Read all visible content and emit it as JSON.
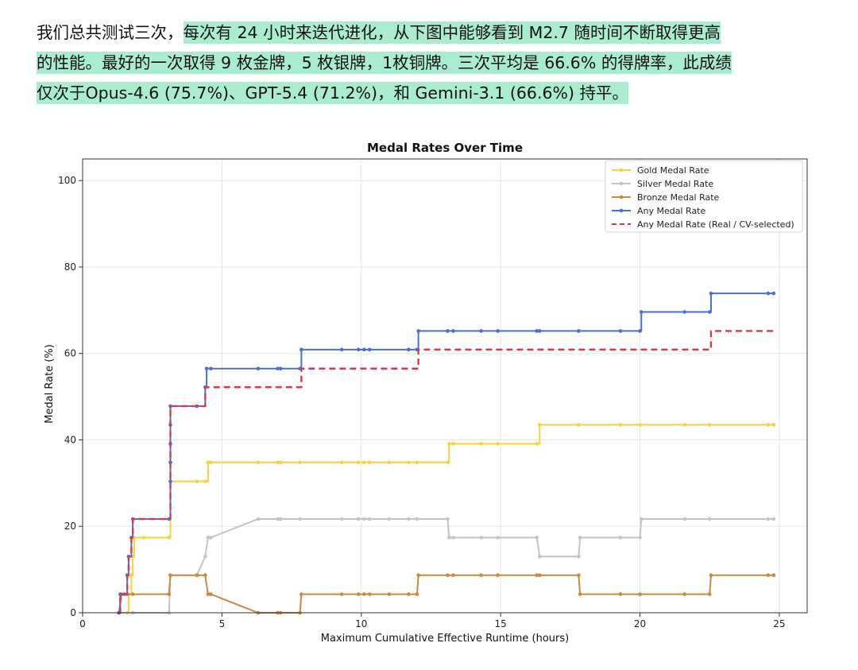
{
  "text": {
    "line1_plain": "我们总共测试三次，",
    "line1_hl": "每次有 24 小时来迭代进化，从下图中能够看到 M2.7 随时间不断取得更高",
    "line2_hl": "的性能。最好的一次取得 9 枚金牌，5 枚银牌，1枚铜牌。三次平均是 66.6% 的得牌率，此成绩",
    "line3_hl": "仅次于Opus-4.6 (75.7%)、GPT-5.4 (71.2%)，和 Gemini-3.1 (66.6%) 持平。"
  },
  "colors": {
    "highlight": "#a9ecd0",
    "gold": "#f5d33a",
    "silver": "#c4c4c4",
    "bronze": "#c98a3e",
    "any": "#4a6fd8",
    "real": "#d9394f"
  },
  "chart_data": {
    "type": "line",
    "title": "Medal Rates Over Time",
    "xlabel": "Maximum Cumulative Effective Runtime (hours)",
    "ylabel": "Medal Rate (%)",
    "xlim": [
      0,
      26
    ],
    "ylim": [
      0,
      105
    ],
    "xticks": [
      0,
      5,
      10,
      15,
      20,
      25
    ],
    "yticks": [
      0,
      20,
      40,
      60,
      80,
      100
    ],
    "grid": true,
    "legend_position": "top-right",
    "series": [
      {
        "name": "Gold Medal Rate",
        "color": "#f5d33a",
        "style": "solid",
        "step": true,
        "points": [
          [
            1.3,
            0
          ],
          [
            1.6,
            0
          ],
          [
            1.65,
            4.3
          ],
          [
            1.75,
            8.7
          ],
          [
            1.8,
            13
          ],
          [
            1.85,
            17.4
          ],
          [
            2.2,
            17.4
          ],
          [
            3.1,
            17.4
          ],
          [
            3.15,
            30.4
          ],
          [
            4.1,
            30.4
          ],
          [
            4.4,
            30.4
          ],
          [
            4.5,
            34.8
          ],
          [
            4.6,
            34.8
          ],
          [
            6.3,
            34.8
          ],
          [
            7.0,
            34.8
          ],
          [
            7.1,
            34.8
          ],
          [
            7.8,
            34.8
          ],
          [
            9.3,
            34.8
          ],
          [
            9.9,
            34.8
          ],
          [
            10.1,
            34.8
          ],
          [
            10.3,
            34.8
          ],
          [
            11.0,
            34.8
          ],
          [
            11.7,
            34.8
          ],
          [
            12.0,
            34.8
          ],
          [
            13.1,
            34.8
          ],
          [
            13.15,
            39.1
          ],
          [
            13.3,
            39.1
          ],
          [
            14.3,
            39.1
          ],
          [
            14.9,
            39.1
          ],
          [
            16.3,
            39.1
          ],
          [
            16.4,
            43.5
          ],
          [
            17.8,
            43.5
          ],
          [
            19.3,
            43.5
          ],
          [
            20.0,
            43.5
          ],
          [
            21.6,
            43.5
          ],
          [
            22.5,
            43.5
          ],
          [
            24.6,
            43.5
          ],
          [
            24.8,
            43.5
          ]
        ]
      },
      {
        "name": "Silver Medal Rate",
        "color": "#c4c4c4",
        "style": "solid",
        "step": false,
        "points": [
          [
            1.3,
            0
          ],
          [
            1.8,
            0
          ],
          [
            3.1,
            0
          ],
          [
            3.15,
            8.7
          ],
          [
            4.1,
            8.7
          ],
          [
            4.4,
            13
          ],
          [
            4.5,
            17.4
          ],
          [
            4.6,
            17.4
          ],
          [
            6.3,
            21.7
          ],
          [
            7.0,
            21.7
          ],
          [
            7.1,
            21.7
          ],
          [
            7.8,
            21.7
          ],
          [
            9.3,
            21.7
          ],
          [
            9.9,
            21.7
          ],
          [
            10.1,
            21.7
          ],
          [
            10.3,
            21.7
          ],
          [
            11.0,
            21.7
          ],
          [
            11.7,
            21.7
          ],
          [
            12.0,
            21.7
          ],
          [
            13.1,
            21.7
          ],
          [
            13.15,
            17.4
          ],
          [
            13.3,
            17.4
          ],
          [
            14.3,
            17.4
          ],
          [
            14.9,
            17.4
          ],
          [
            16.3,
            17.4
          ],
          [
            16.4,
            13
          ],
          [
            17.8,
            13
          ],
          [
            17.85,
            17.4
          ],
          [
            19.3,
            17.4
          ],
          [
            20.0,
            17.4
          ],
          [
            20.05,
            21.7
          ],
          [
            21.6,
            21.7
          ],
          [
            22.5,
            21.7
          ],
          [
            24.6,
            21.7
          ],
          [
            24.8,
            21.7
          ]
        ]
      },
      {
        "name": "Bronze Medal Rate",
        "color": "#c98a3e",
        "style": "solid",
        "step": false,
        "points": [
          [
            1.3,
            0
          ],
          [
            1.4,
            4.3
          ],
          [
            1.6,
            4.3
          ],
          [
            1.8,
            4.3
          ],
          [
            3.1,
            4.3
          ],
          [
            3.15,
            8.7
          ],
          [
            4.1,
            8.7
          ],
          [
            4.4,
            8.7
          ],
          [
            4.5,
            4.3
          ],
          [
            4.6,
            4.3
          ],
          [
            6.3,
            0
          ],
          [
            7.0,
            0
          ],
          [
            7.1,
            0
          ],
          [
            7.8,
            0
          ],
          [
            7.85,
            4.3
          ],
          [
            9.3,
            4.3
          ],
          [
            9.9,
            4.3
          ],
          [
            10.1,
            4.3
          ],
          [
            10.3,
            4.3
          ],
          [
            11.0,
            4.3
          ],
          [
            11.7,
            4.3
          ],
          [
            12.0,
            4.3
          ],
          [
            12.05,
            8.7
          ],
          [
            13.1,
            8.7
          ],
          [
            13.3,
            8.7
          ],
          [
            14.3,
            8.7
          ],
          [
            14.9,
            8.7
          ],
          [
            16.3,
            8.7
          ],
          [
            16.4,
            8.7
          ],
          [
            17.8,
            8.7
          ],
          [
            17.85,
            4.3
          ],
          [
            19.3,
            4.3
          ],
          [
            20.0,
            4.3
          ],
          [
            21.6,
            4.3
          ],
          [
            22.5,
            4.3
          ],
          [
            22.55,
            8.7
          ],
          [
            24.6,
            8.7
          ],
          [
            24.8,
            8.7
          ]
        ]
      },
      {
        "name": "Any Medal Rate",
        "color": "#4a6fd8",
        "style": "solid",
        "step": true,
        "points": [
          [
            1.3,
            0
          ],
          [
            1.35,
            4.3
          ],
          [
            1.5,
            4.3
          ],
          [
            1.6,
            8.7
          ],
          [
            1.65,
            13
          ],
          [
            1.75,
            17.4
          ],
          [
            1.8,
            21.7
          ],
          [
            3.1,
            21.7
          ],
          [
            3.15,
            30.4
          ],
          [
            3.15,
            34.8
          ],
          [
            3.15,
            39.1
          ],
          [
            3.15,
            43.5
          ],
          [
            3.15,
            47.8
          ],
          [
            4.1,
            47.8
          ],
          [
            4.4,
            52.2
          ],
          [
            4.45,
            56.5
          ],
          [
            4.6,
            56.5
          ],
          [
            6.3,
            56.5
          ],
          [
            7.0,
            56.5
          ],
          [
            7.1,
            56.5
          ],
          [
            7.8,
            56.5
          ],
          [
            7.85,
            60.9
          ],
          [
            9.3,
            60.9
          ],
          [
            9.9,
            60.9
          ],
          [
            10.1,
            60.9
          ],
          [
            10.3,
            60.9
          ],
          [
            11.7,
            60.9
          ],
          [
            12.0,
            60.9
          ],
          [
            12.05,
            65.2
          ],
          [
            13.1,
            65.2
          ],
          [
            13.3,
            65.2
          ],
          [
            14.3,
            65.2
          ],
          [
            14.9,
            65.2
          ],
          [
            16.3,
            65.2
          ],
          [
            16.4,
            65.2
          ],
          [
            17.8,
            65.2
          ],
          [
            19.3,
            65.2
          ],
          [
            20.0,
            65.2
          ],
          [
            20.05,
            69.6
          ],
          [
            21.6,
            69.6
          ],
          [
            22.5,
            69.6
          ],
          [
            22.55,
            73.9
          ],
          [
            24.6,
            73.9
          ],
          [
            24.8,
            73.9
          ]
        ]
      },
      {
        "name": "Any Medal Rate (Real / CV-selected)",
        "color": "#d9394f",
        "style": "dashed",
        "step": true,
        "points": [
          [
            1.3,
            0
          ],
          [
            1.35,
            4.3
          ],
          [
            1.6,
            8.7
          ],
          [
            1.65,
            13
          ],
          [
            1.75,
            17.4
          ],
          [
            1.8,
            21.7
          ],
          [
            3.1,
            21.7
          ],
          [
            3.15,
            47.8
          ],
          [
            4.1,
            47.8
          ],
          [
            4.4,
            52.2
          ],
          [
            4.45,
            52.2
          ],
          [
            7.8,
            52.2
          ],
          [
            7.85,
            56.5
          ],
          [
            12.0,
            56.5
          ],
          [
            12.05,
            60.9
          ],
          [
            22.5,
            60.9
          ],
          [
            22.55,
            65.2
          ],
          [
            24.8,
            65.2
          ]
        ]
      }
    ]
  }
}
